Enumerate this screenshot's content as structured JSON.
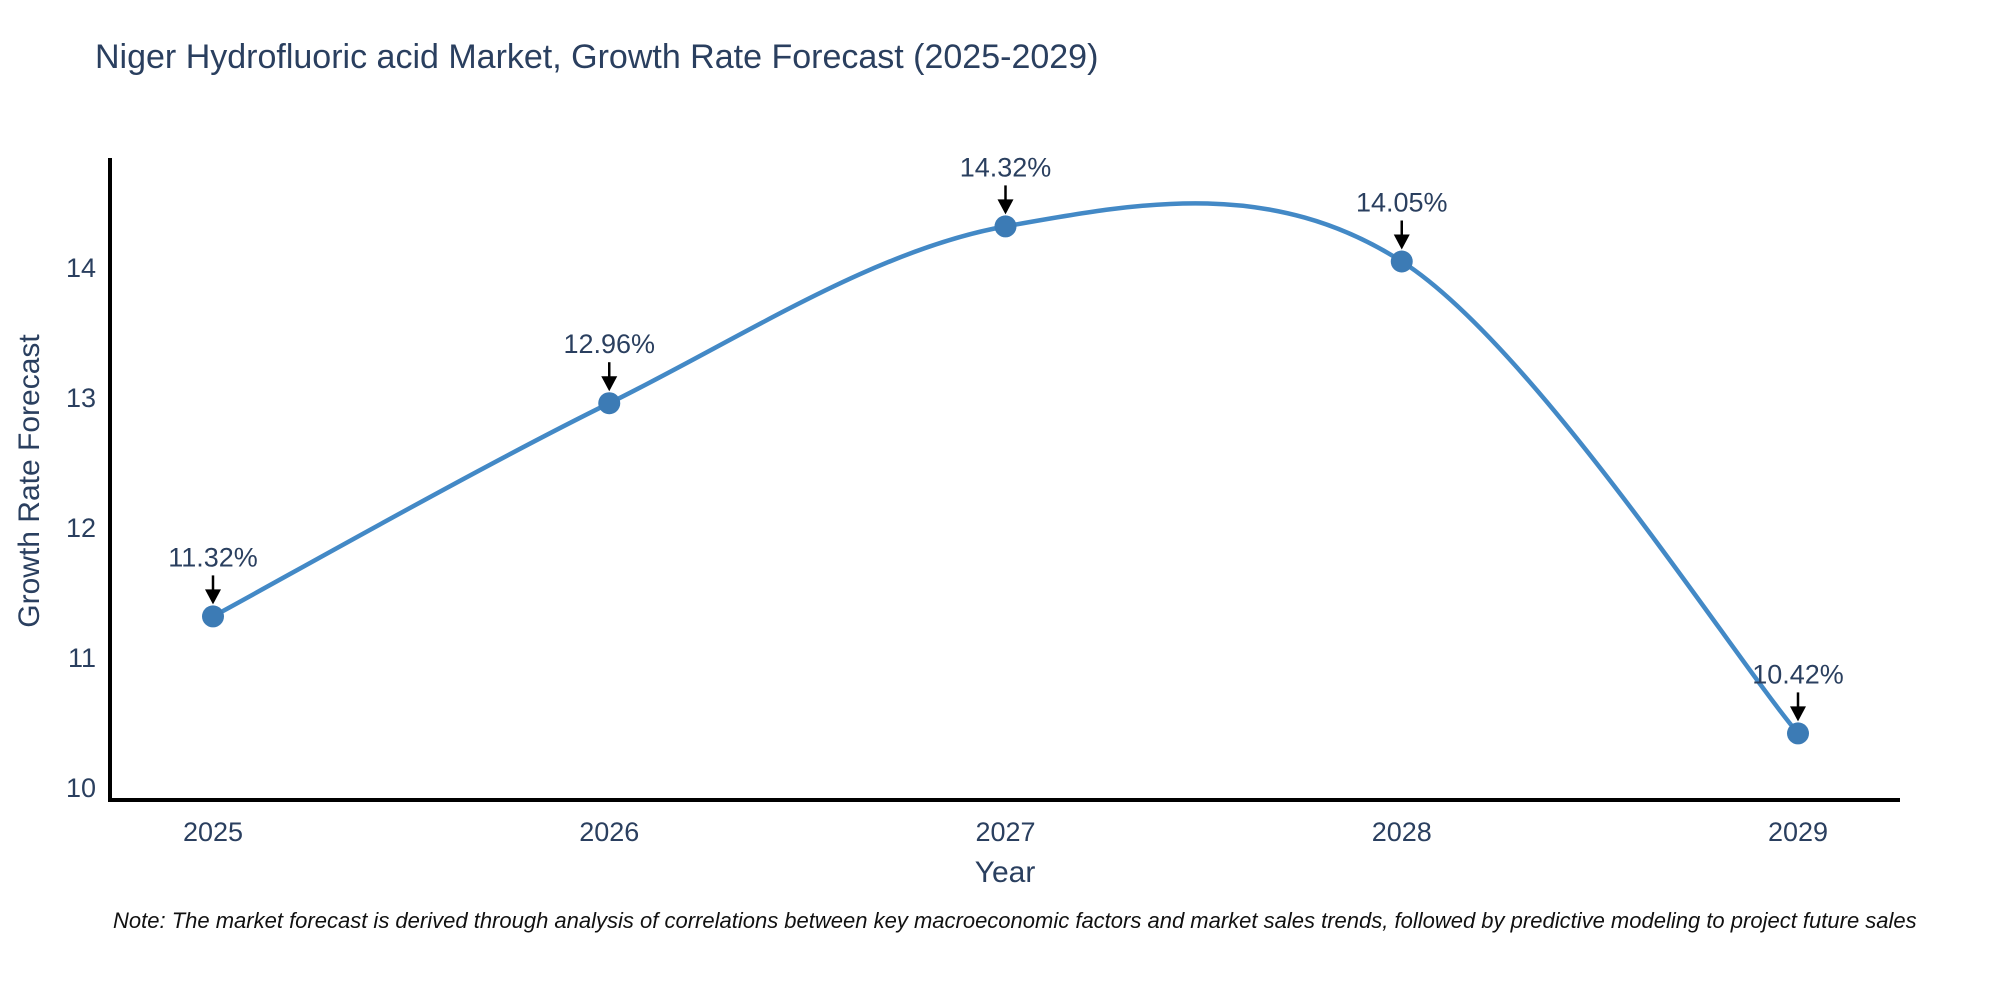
{
  "title": "Niger Hydrofluoric acid Market, Growth Rate Forecast (2025-2029)",
  "note": "Note: The market forecast is derived through analysis of correlations between key macroeconomic factors and market sales trends, followed by predictive modeling to project future sales",
  "chart_data": {
    "type": "line",
    "title": "Niger Hydrofluoric acid Market, Growth Rate Forecast (2025-2029)",
    "xlabel": "Year",
    "ylabel": "Growth Rate Forecast",
    "categories": [
      "2025",
      "2026",
      "2027",
      "2028",
      "2029"
    ],
    "series": [
      {
        "name": "Growth Rate Forecast",
        "values": [
          11.32,
          12.96,
          14.32,
          14.05,
          10.42
        ]
      }
    ],
    "point_labels": [
      "11.32%",
      "12.96%",
      "14.32%",
      "14.05%",
      "10.42%"
    ],
    "yticks": [
      10,
      11,
      12,
      13,
      14
    ],
    "ylim": [
      9.91,
      14.91
    ],
    "line_shape": "spline",
    "grid": false,
    "legend": "none",
    "line_color": "#4389c6",
    "marker_color": "#3c7bb5",
    "axis_color": "#000000",
    "text_color": "#2a3f5f",
    "arrow_color": "#000000"
  }
}
